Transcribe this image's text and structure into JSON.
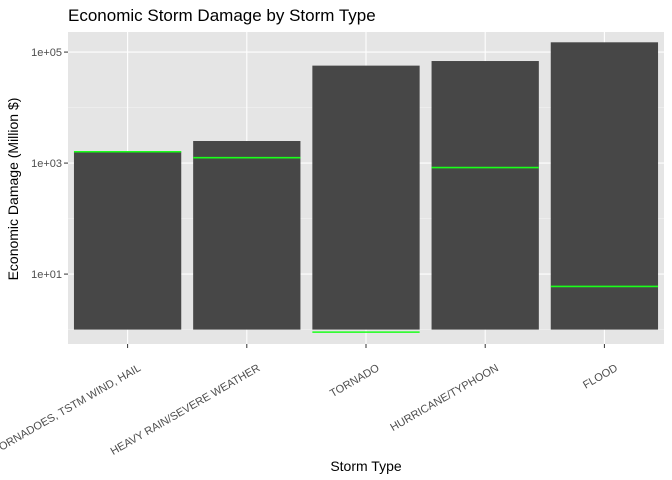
{
  "chart_data": {
    "type": "bar",
    "title": "Economic Storm Damage by Storm Type",
    "xlabel": "Storm Type",
    "ylabel": "Economic Damage (Million $)",
    "y_scale": "log10",
    "ylim": [
      0.55,
      230000
    ],
    "y_ticks": [
      {
        "value": 10,
        "label": "1e+01"
      },
      {
        "value": 1000,
        "label": "1e+03"
      },
      {
        "value": 100000,
        "label": "1e+05"
      }
    ],
    "categories": [
      "TORNADOES, TSTM WIND, HAIL",
      "HEAVY RAIN/SEVERE WEATHER",
      "TORNADO",
      "HURRICANE/TYPHOON",
      "FLOOD"
    ],
    "series": [
      {
        "values": [
          1600,
          2500,
          57000,
          69000,
          150000
        ],
        "color": "#474747"
      },
      {
        "values": [
          1600,
          1250,
          0.9,
          830,
          6
        ],
        "color": "#1aff1a"
      }
    ],
    "bar_base": 1,
    "grid": true,
    "background": "#e5e5e5"
  }
}
